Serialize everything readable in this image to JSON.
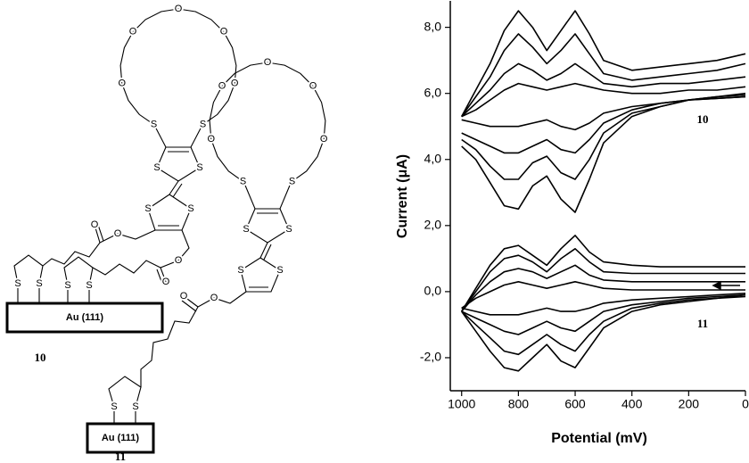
{
  "chart_data": {
    "type": "line",
    "xlabel": "Potential (mV)",
    "ylabel": "Current (μA)",
    "x": [
      1000,
      950,
      900,
      850,
      800,
      750,
      700,
      650,
      600,
      550,
      500,
      400,
      300,
      200,
      100,
      0
    ],
    "xlim": [
      1040,
      0
    ],
    "xticks": [
      1000,
      800,
      600,
      400,
      200,
      0
    ],
    "ylim": [
      -3,
      8.8
    ],
    "yticks": [
      {
        "value": -2,
        "label": "-2,0"
      },
      {
        "value": 0,
        "label": "0,0"
      },
      {
        "value": 2,
        "label": "2,0"
      },
      {
        "value": 4,
        "label": "4,0"
      },
      {
        "value": 6,
        "label": "6,0"
      },
      {
        "value": 8,
        "label": "8,0"
      }
    ],
    "annotations": [
      "10",
      "11"
    ],
    "series": [
      {
        "color": "#000000",
        "values": [
          5.3,
          6.1,
          6.9,
          7.9,
          8.5,
          8.0,
          7.3,
          7.9,
          8.5,
          7.8,
          7.0,
          6.7,
          6.8,
          6.9,
          7.0,
          7.2
        ]
      },
      {
        "color": "#000000",
        "values": [
          5.3,
          5.9,
          6.5,
          7.3,
          7.8,
          7.4,
          6.9,
          7.3,
          7.8,
          7.2,
          6.6,
          6.4,
          6.5,
          6.6,
          6.7,
          6.9
        ]
      },
      {
        "color": "#000000",
        "values": [
          5.3,
          5.7,
          6.1,
          6.6,
          6.9,
          6.7,
          6.4,
          6.6,
          6.9,
          6.6,
          6.3,
          6.2,
          6.3,
          6.3,
          6.4,
          6.5
        ]
      },
      {
        "color": "#000000",
        "values": [
          5.3,
          5.5,
          5.8,
          6.1,
          6.3,
          6.2,
          6.1,
          6.2,
          6.3,
          6.2,
          6.1,
          6.0,
          6.0,
          6.1,
          6.1,
          6.2
        ]
      },
      {
        "color": "#000000",
        "values": [
          4.4,
          4.0,
          3.3,
          2.6,
          2.5,
          3.2,
          3.5,
          2.8,
          2.4,
          3.4,
          4.5,
          5.3,
          5.6,
          5.8,
          5.9,
          6.0
        ]
      },
      {
        "color": "#000000",
        "values": [
          4.6,
          4.3,
          3.8,
          3.4,
          3.4,
          3.9,
          4.1,
          3.6,
          3.4,
          4.0,
          4.8,
          5.4,
          5.6,
          5.8,
          5.9,
          5.95
        ]
      },
      {
        "color": "#000000",
        "values": [
          4.8,
          4.6,
          4.4,
          4.2,
          4.2,
          4.4,
          4.6,
          4.3,
          4.2,
          4.6,
          5.1,
          5.5,
          5.7,
          5.8,
          5.85,
          5.9
        ]
      },
      {
        "color": "#000000",
        "values": [
          5.2,
          5.1,
          5.0,
          5.0,
          5.0,
          5.1,
          5.2,
          5.0,
          4.9,
          5.1,
          5.4,
          5.6,
          5.7,
          5.8,
          5.85,
          5.9
        ]
      },
      {
        "color": "#000000",
        "values": [
          -0.6,
          0.1,
          0.8,
          1.3,
          1.4,
          1.1,
          0.8,
          1.3,
          1.7,
          1.2,
          0.9,
          0.8,
          0.75,
          0.75,
          0.75,
          0.75
        ]
      },
      {
        "color": "#000000",
        "values": [
          -0.6,
          0,
          0.6,
          1.0,
          1.1,
          0.9,
          0.6,
          1.0,
          1.3,
          0.9,
          0.6,
          0.55,
          0.55,
          0.55,
          0.55,
          0.55
        ]
      },
      {
        "color": "#000000",
        "values": [
          -0.6,
          -0.1,
          0.3,
          0.6,
          0.7,
          0.6,
          0.4,
          0.6,
          0.8,
          0.5,
          0.35,
          0.3,
          0.3,
          0.3,
          0.3,
          0.3
        ]
      },
      {
        "color": "#000000",
        "values": [
          -0.5,
          -0.2,
          0,
          0.2,
          0.3,
          0.2,
          0.1,
          0.2,
          0.3,
          0.2,
          0.1,
          0.05,
          0.05,
          0.05,
          0.05,
          0.05
        ]
      },
      {
        "color": "#000000",
        "values": [
          -0.6,
          -1.2,
          -1.8,
          -2.3,
          -2.4,
          -2.0,
          -1.6,
          -2.1,
          -2.3,
          -1.7,
          -1.1,
          -0.6,
          -0.4,
          -0.3,
          -0.2,
          -0.15
        ]
      },
      {
        "color": "#000000",
        "values": [
          -0.6,
          -1.0,
          -1.4,
          -1.8,
          -1.9,
          -1.6,
          -1.3,
          -1.6,
          -1.8,
          -1.3,
          -0.9,
          -0.5,
          -0.35,
          -0.25,
          -0.2,
          -0.1
        ]
      },
      {
        "color": "#000000",
        "values": [
          -0.6,
          -0.8,
          -1.0,
          -1.2,
          -1.3,
          -1.1,
          -0.9,
          -1.1,
          -1.2,
          -0.9,
          -0.6,
          -0.4,
          -0.3,
          -0.2,
          -0.15,
          -0.1
        ]
      },
      {
        "color": "#000000",
        "values": [
          -0.5,
          -0.6,
          -0.7,
          -0.7,
          -0.7,
          -0.6,
          -0.5,
          -0.6,
          -0.6,
          -0.5,
          -0.35,
          -0.25,
          -0.2,
          -0.15,
          -0.1,
          -0.05
        ]
      }
    ]
  },
  "structures": [
    {
      "label": "10",
      "surface": "Au (111)",
      "atoms": [
        "O",
        "O",
        "O",
        "O",
        "O",
        "S",
        "S",
        "S",
        "S",
        "S",
        "S",
        "O",
        "O",
        "O",
        "O",
        "S",
        "S",
        "S",
        "S"
      ]
    },
    {
      "label": "11",
      "surface": "Au (111)",
      "atoms": [
        "O",
        "O",
        "O",
        "O",
        "O",
        "S",
        "S",
        "S",
        "S",
        "S",
        "S",
        "O",
        "O",
        "S",
        "S"
      ]
    }
  ]
}
